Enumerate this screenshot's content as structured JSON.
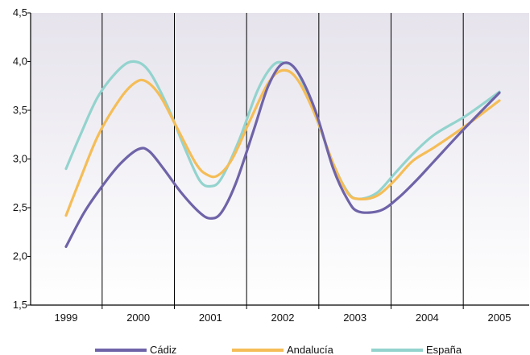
{
  "chart_data": {
    "type": "line",
    "title": "",
    "xlabel": "",
    "ylabel": "",
    "x_tick_labels": [
      "1999",
      "2000",
      "2001",
      "2002",
      "2003",
      "2004",
      "2005"
    ],
    "xlim": [
      1999,
      2005
    ],
    "ylim": [
      1.5,
      4.5
    ],
    "y_ticks": [
      1.5,
      2.0,
      2.5,
      3.0,
      3.5,
      4.0,
      4.5
    ],
    "y_tick_labels": [
      "1,5",
      "2,0",
      "2,5",
      "3,0",
      "3,5",
      "4,0",
      "4,5"
    ],
    "grid": {
      "vertical": true,
      "horizontal": false
    },
    "legend": {
      "position": "bottom"
    },
    "colors": {
      "plot_top": "#e6e3ec",
      "plot_bottom": "#ffffff"
    },
    "series": [
      {
        "name": "Cádiz",
        "color": "#6f63a8",
        "points": [
          [
            1999.0,
            2.1
          ],
          [
            1999.25,
            2.45
          ],
          [
            1999.5,
            2.72
          ],
          [
            1999.75,
            2.95
          ],
          [
            2000.0,
            3.1
          ],
          [
            2000.15,
            3.08
          ],
          [
            2000.35,
            2.9
          ],
          [
            2000.6,
            2.65
          ],
          [
            2000.85,
            2.45
          ],
          [
            2001.0,
            2.39
          ],
          [
            2001.15,
            2.45
          ],
          [
            2001.35,
            2.75
          ],
          [
            2001.6,
            3.3
          ],
          [
            2001.8,
            3.75
          ],
          [
            2002.0,
            3.98
          ],
          [
            2002.2,
            3.9
          ],
          [
            2002.45,
            3.5
          ],
          [
            2002.7,
            2.9
          ],
          [
            2002.9,
            2.58
          ],
          [
            2003.05,
            2.46
          ],
          [
            2003.35,
            2.47
          ],
          [
            2003.6,
            2.6
          ],
          [
            2003.85,
            2.78
          ],
          [
            2004.1,
            2.98
          ],
          [
            2004.5,
            3.3
          ],
          [
            2005.0,
            3.68
          ]
        ]
      },
      {
        "name": "Andalucía",
        "color": "#f5bd57",
        "points": [
          [
            1999.0,
            2.42
          ],
          [
            1999.2,
            2.8
          ],
          [
            1999.45,
            3.25
          ],
          [
            1999.75,
            3.62
          ],
          [
            1999.95,
            3.78
          ],
          [
            2000.1,
            3.8
          ],
          [
            2000.3,
            3.65
          ],
          [
            2000.55,
            3.3
          ],
          [
            2000.8,
            2.95
          ],
          [
            2000.95,
            2.84
          ],
          [
            2001.1,
            2.83
          ],
          [
            2001.3,
            3.0
          ],
          [
            2001.55,
            3.4
          ],
          [
            2001.8,
            3.78
          ],
          [
            2002.0,
            3.91
          ],
          [
            2002.2,
            3.82
          ],
          [
            2002.45,
            3.45
          ],
          [
            2002.7,
            2.95
          ],
          [
            2002.9,
            2.65
          ],
          [
            2003.05,
            2.59
          ],
          [
            2003.3,
            2.62
          ],
          [
            2003.55,
            2.78
          ],
          [
            2003.8,
            2.98
          ],
          [
            2004.1,
            3.12
          ],
          [
            2004.55,
            3.35
          ],
          [
            2005.0,
            3.6
          ]
        ]
      },
      {
        "name": "España",
        "color": "#93d3ce",
        "points": [
          [
            1999.0,
            2.9
          ],
          [
            1999.2,
            3.25
          ],
          [
            1999.45,
            3.65
          ],
          [
            1999.75,
            3.93
          ],
          [
            1999.95,
            4.0
          ],
          [
            2000.15,
            3.9
          ],
          [
            2000.4,
            3.55
          ],
          [
            2000.65,
            3.1
          ],
          [
            2000.85,
            2.78
          ],
          [
            2001.0,
            2.72
          ],
          [
            2001.15,
            2.8
          ],
          [
            2001.4,
            3.2
          ],
          [
            2001.65,
            3.7
          ],
          [
            2001.85,
            3.95
          ],
          [
            2002.0,
            3.99
          ],
          [
            2002.2,
            3.9
          ],
          [
            2002.45,
            3.45
          ],
          [
            2002.7,
            2.95
          ],
          [
            2002.9,
            2.66
          ],
          [
            2003.05,
            2.59
          ],
          [
            2003.3,
            2.65
          ],
          [
            2003.55,
            2.85
          ],
          [
            2003.8,
            3.05
          ],
          [
            2004.1,
            3.25
          ],
          [
            2004.55,
            3.45
          ],
          [
            2005.0,
            3.69
          ]
        ]
      }
    ]
  }
}
